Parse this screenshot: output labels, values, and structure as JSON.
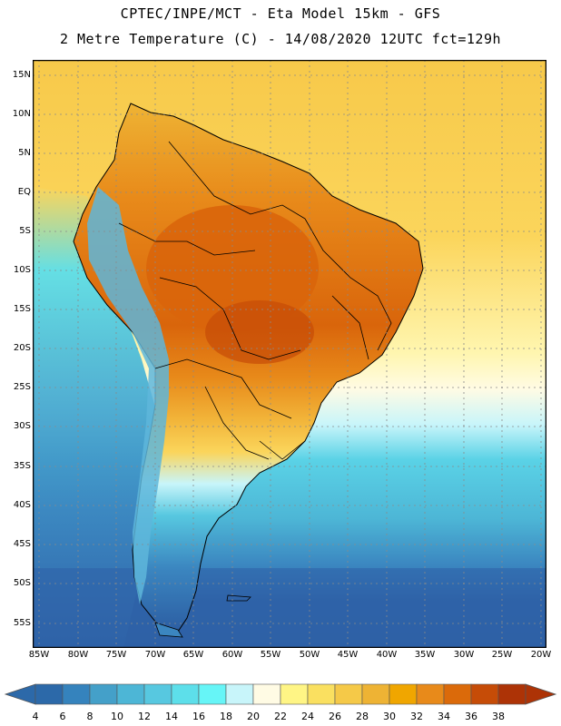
{
  "title_line1": "CPTEC/INPE/MCT -  Eta Model 15km - GFS",
  "title_line2": "2 Metre Temperature (C) - 14/08/2020 12UTC fct=129h",
  "lat_labels": [
    "15N",
    "10N",
    "5N",
    "EQ",
    "5S",
    "10S",
    "15S",
    "20S",
    "25S",
    "30S",
    "35S",
    "40S",
    "45S",
    "50S",
    "55S"
  ],
  "lon_labels": [
    "85W",
    "80W",
    "75W",
    "70W",
    "65W",
    "60W",
    "55W",
    "50W",
    "45W",
    "40W",
    "35W",
    "30W",
    "25W",
    "20W"
  ],
  "colorbar": {
    "ticks": [
      "4",
      "6",
      "8",
      "10",
      "12",
      "14",
      "16",
      "18",
      "20",
      "22",
      "24",
      "26",
      "28",
      "30",
      "32",
      "34",
      "36",
      "38"
    ],
    "colors": [
      "#2c69a9",
      "#3583bd",
      "#44a0c9",
      "#4db6d6",
      "#57c8e0",
      "#5ddfea",
      "#66f5f7",
      "#c8f5fa",
      "#fffbe4",
      "#fff585",
      "#fae060",
      "#f5c948",
      "#eeb334",
      "#f0a600",
      "#e88a1a",
      "#db6a0a",
      "#c64c07",
      "#ad3306"
    ]
  },
  "colors": {
    "ocean_cold": "#2f63a8",
    "ocean_cool": "#3b86c0",
    "ocean_mild": "#5ad2e6",
    "ocean_warm": "#fbd55b",
    "land_hot": "#d9650b",
    "land_warm": "#ee9f23",
    "andes": "#5eb6db"
  }
}
